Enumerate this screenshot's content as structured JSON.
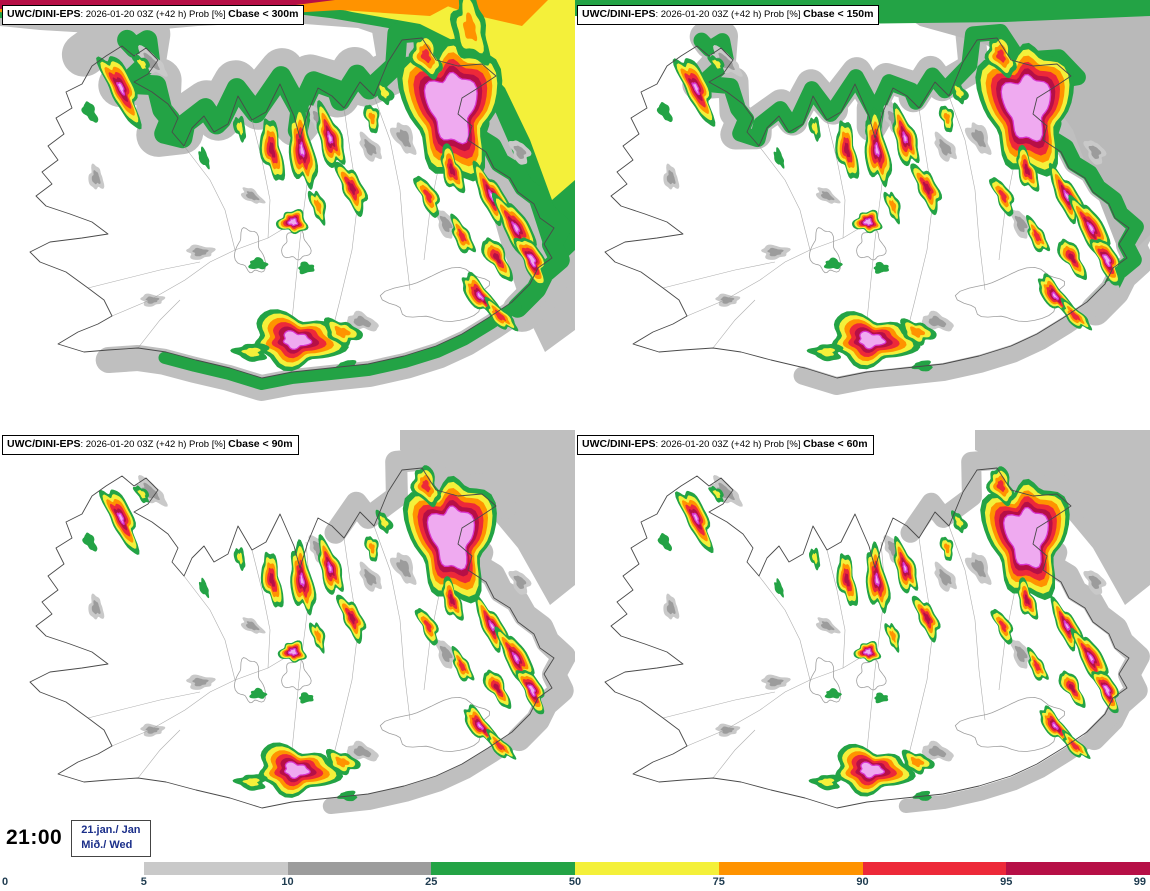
{
  "panels": [
    {
      "model": "UWC/DINI-EPS",
      "meta": ": 2026-01-20 03Z (+42 h) Prob [%] ",
      "threshold": "Cbase < 300m"
    },
    {
      "model": "UWC/DINI-EPS",
      "meta": ": 2026-01-20 03Z (+42 h) Prob [%] ",
      "threshold": "Cbase < 150m"
    },
    {
      "model": "UWC/DINI-EPS",
      "meta": ": 2026-01-20 03Z (+42 h) Prob [%] ",
      "threshold": "Cbase < 90m"
    },
    {
      "model": "UWC/DINI-EPS",
      "meta": ": 2026-01-20 03Z (+42 h) Prob [%] ",
      "threshold": "Cbase < 60m"
    }
  ],
  "footer": {
    "time": "21:00",
    "date_top": "21.jan./ Jan",
    "date_bottom": "Mið./ Wed"
  },
  "colorbar": {
    "ticks": [
      "0",
      "5",
      "10",
      "25",
      "50",
      "75",
      "90",
      "95",
      "99"
    ],
    "label_color": "#1f3c50",
    "segments": [
      {
        "range": "0-5",
        "color": "#ffffff"
      },
      {
        "range": "5-10",
        "color": "#c9c9c9"
      },
      {
        "range": "10-25",
        "color": "#9c9c9c"
      },
      {
        "range": "25-50",
        "color": "#23a345"
      },
      {
        "range": "50-75",
        "color": "#f4f03a"
      },
      {
        "range": "75-90",
        "color": "#ff9300"
      },
      {
        "range": "90-95",
        "color": "#ed2939"
      },
      {
        "range": "95-99",
        "color": "#b60f46"
      }
    ]
  },
  "map_palette": {
    "prob_levels": [
      "#23a345",
      "#f4f03a",
      "#ff9300",
      "#ed2939",
      "#b60f46",
      "#efaaf0"
    ],
    "violet_edge": "#d935cf",
    "gray_light": "#c9c9c9",
    "gray_dark": "#9c9c9c",
    "sea_gray": "#bfbfbf",
    "coast": "#4a4a4a",
    "border_lines": "#9a9a9a",
    "date_color": "#1b2f8a"
  }
}
